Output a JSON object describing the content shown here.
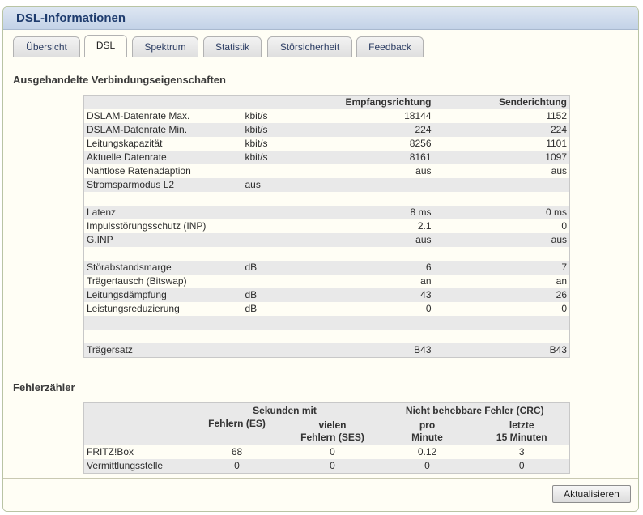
{
  "window": {
    "title": "DSL-Informationen"
  },
  "tabs": [
    {
      "label": "Übersicht"
    },
    {
      "label": "DSL"
    },
    {
      "label": "Spektrum"
    },
    {
      "label": "Statistik"
    },
    {
      "label": "Störsicherheit"
    },
    {
      "label": "Feedback"
    }
  ],
  "active_tab": "DSL",
  "connection": {
    "heading": "Ausgehandelte Verbindungseigenschaften",
    "col_rx": "Empfangsrichtung",
    "col_tx": "Senderichtung",
    "rows": [
      {
        "label": "DSLAM-Datenrate Max.",
        "unit": "kbit/s",
        "rx": "18144",
        "tx": "1152"
      },
      {
        "label": "DSLAM-Datenrate Min.",
        "unit": "kbit/s",
        "rx": "224",
        "tx": "224"
      },
      {
        "label": "Leitungskapazität",
        "unit": "kbit/s",
        "rx": "8256",
        "tx": "1101"
      },
      {
        "label": "Aktuelle Datenrate",
        "unit": "kbit/s",
        "rx": "8161",
        "tx": "1097"
      },
      {
        "label": "Nahtlose Ratenadaption",
        "unit": "",
        "rx": "aus",
        "tx": "aus"
      },
      {
        "label": "Stromsparmodus L2",
        "unit": "aus",
        "rx": "",
        "tx": ""
      },
      {
        "label": "",
        "unit": "",
        "rx": "",
        "tx": ""
      },
      {
        "label": "Latenz",
        "unit": "",
        "rx": "8 ms",
        "tx": "0 ms"
      },
      {
        "label": "Impulsstörungsschutz (INP)",
        "unit": "",
        "rx": "2.1",
        "tx": "0"
      },
      {
        "label": "G.INP",
        "unit": "",
        "rx": "aus",
        "tx": "aus"
      },
      {
        "label": "",
        "unit": "",
        "rx": "",
        "tx": ""
      },
      {
        "label": "Störabstandsmarge",
        "unit": "dB",
        "rx": "6",
        "tx": "7"
      },
      {
        "label": "Trägertausch (Bitswap)",
        "unit": "",
        "rx": "an",
        "tx": "an"
      },
      {
        "label": "Leitungsdämpfung",
        "unit": "dB",
        "rx": "43",
        "tx": "26"
      },
      {
        "label": "Leistungsreduzierung",
        "unit": "dB",
        "rx": "0",
        "tx": "0"
      },
      {
        "label": "",
        "unit": "",
        "rx": "",
        "tx": ""
      },
      {
        "label": "",
        "unit": "",
        "rx": "",
        "tx": ""
      },
      {
        "label": "Trägersatz",
        "unit": "",
        "rx": "B43",
        "tx": "B43"
      }
    ]
  },
  "errors": {
    "heading": "Fehlerzähler",
    "group_seconds": "Sekunden mit",
    "group_crc": "Nicht behebbare Fehler (CRC)",
    "col_es": "Fehlern (ES)",
    "col_ses_line1": "vielen",
    "col_ses_line2": "Fehlern (SES)",
    "col_min_line1": "pro",
    "col_min_line2": "Minute",
    "col_15_line1": "letzte",
    "col_15_line2": "15 Minuten",
    "rows": [
      {
        "label": "FRITZ!Box",
        "es": "68",
        "ses": "0",
        "min": "0.12",
        "last15": "3"
      },
      {
        "label": "Vermittlungsstelle",
        "es": "0",
        "ses": "0",
        "min": "0",
        "last15": "0"
      }
    ]
  },
  "footer": {
    "refresh_label": "Aktualisieren"
  }
}
